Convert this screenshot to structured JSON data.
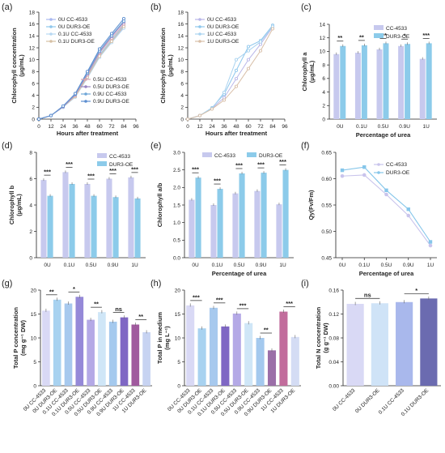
{
  "colors": {
    "cc": "#c7c9ee",
    "oe": "#8ccbea",
    "axis": "#222222"
  },
  "panels": {
    "a": {
      "label": "(a)",
      "xlabel": "Hours after treatment",
      "ylabel": "Chlorophyll concentration",
      "yunit": "(μg/mL)"
    },
    "b": {
      "label": "(b)",
      "xlabel": "Hours after treatment",
      "ylabel": "Chlorophyll concentration",
      "yunit": "(μg/mL)"
    },
    "c": {
      "label": "(c)",
      "xlabel": "Percentage of urea",
      "ylabel": "Chlorophyll a",
      "yunit": "(μg/mL)"
    },
    "d": {
      "label": "(d)",
      "xlabel": "",
      "ylabel": "Chlorophyll b",
      "yunit": "(μg/mL)"
    },
    "e": {
      "label": "(e)",
      "xlabel": "Percentage of urea",
      "ylabel": "Chlorophyll a/b",
      "yunit": ""
    },
    "f": {
      "label": "(f)",
      "xlabel": "Percentage of urea",
      "ylabel": "Qy(Fv/Fm)",
      "yunit": ""
    },
    "g": {
      "label": "(g)",
      "xlabel": "",
      "ylabel": "Total P concentration",
      "yunit": "(mg g⁻¹ DW)"
    },
    "h": {
      "label": "(h)",
      "xlabel": "",
      "ylabel": "Total P in medium",
      "yunit": "(mg L⁻¹)"
    },
    "i": {
      "label": "(i)",
      "xlabel": "",
      "ylabel": "Total N concentration",
      "yunit": "(g g⁻¹ DW)"
    }
  },
  "chart_data": [
    {
      "id": "a",
      "type": "line",
      "x": [
        0,
        12,
        24,
        36,
        48,
        60,
        72,
        84
      ],
      "xlim": [
        0,
        96
      ],
      "ylim": [
        0,
        18
      ],
      "yticks": [
        0,
        2,
        4,
        6,
        8,
        10,
        12,
        14,
        16,
        18
      ],
      "xticks": [
        0,
        12,
        24,
        36,
        48,
        60,
        72,
        84,
        96
      ],
      "series": [
        {
          "name": "0U CC-4533",
          "color": "#a8b8f0",
          "values": [
            0,
            0.6,
            2.0,
            3.8,
            7.0,
            10.5,
            13.0,
            15.4
          ]
        },
        {
          "name": "0U DUR3-OE",
          "color": "#8fc7ec",
          "values": [
            0,
            0.6,
            2.0,
            3.9,
            7.2,
            10.8,
            13.3,
            15.8
          ]
        },
        {
          "name": "0.1U CC-4533",
          "color": "#b7d8f2",
          "values": [
            0,
            0.6,
            2.0,
            3.7,
            6.9,
            10.4,
            12.9,
            15.3
          ]
        },
        {
          "name": "0.1U DUR3-OE",
          "color": "#d6c0a4",
          "values": [
            0,
            0.6,
            2.1,
            3.8,
            7.1,
            10.6,
            13.1,
            15.6
          ]
        },
        {
          "name": "0.5U CC-4533",
          "color": "#d9a8b2",
          "values": [
            0,
            0.6,
            2.1,
            4.0,
            7.4,
            11.1,
            13.6,
            16.0
          ]
        },
        {
          "name": "0.5U DUR3-OE",
          "color": "#9a86c4",
          "values": [
            0,
            0.6,
            2.1,
            4.1,
            7.6,
            11.3,
            13.9,
            16.3
          ]
        },
        {
          "name": "0.9U CC-4533",
          "color": "#6fa6d8",
          "values": [
            0,
            0.6,
            2.2,
            4.2,
            7.8,
            11.5,
            14.1,
            16.5
          ]
        },
        {
          "name": "0.9U DUR3-OE",
          "color": "#5d8fd0",
          "values": [
            0,
            0.6,
            2.2,
            4.3,
            8.0,
            11.8,
            14.4,
            16.9
          ]
        }
      ]
    },
    {
      "id": "b",
      "type": "line",
      "x": [
        0,
        12,
        24,
        36,
        48,
        60,
        72,
        84
      ],
      "xlim": [
        0,
        96
      ],
      "ylim": [
        0,
        18
      ],
      "yticks": [
        0,
        2,
        4,
        6,
        8,
        10,
        12,
        14,
        16,
        18
      ],
      "xticks": [
        0,
        12,
        24,
        36,
        48,
        60,
        72,
        84,
        96
      ],
      "series": [
        {
          "name": "0U CC-4533",
          "color": "#b9b6e8",
          "values": [
            0,
            0.6,
            1.8,
            3.6,
            6.8,
            10.0,
            12.6,
            15.5
          ]
        },
        {
          "name": "0U DUR3-OE",
          "color": "#8fc7ec",
          "values": [
            0,
            0.6,
            1.9,
            4.2,
            8.2,
            12.2,
            13.2,
            15.8
          ]
        },
        {
          "name": "1U CC-4533",
          "color": "#a9d3f0",
          "values": [
            0,
            0.6,
            1.8,
            4.5,
            10.0,
            11.5,
            13.0,
            15.6
          ]
        },
        {
          "name": "1U DUR3-OE",
          "color": "#d8bfa8",
          "values": [
            0,
            0.6,
            1.7,
            3.2,
            5.5,
            8.5,
            11.5,
            15.2
          ]
        }
      ]
    },
    {
      "id": "c",
      "type": "bar",
      "categories": [
        "0U",
        "0.1U",
        "0.5U",
        "0.9U",
        "1U"
      ],
      "ylim": [
        0,
        14
      ],
      "yticks": [
        0,
        2,
        4,
        6,
        8,
        10,
        12,
        14
      ],
      "series": [
        {
          "name": "CC-4533",
          "values": [
            9.6,
            9.8,
            10.3,
            10.8,
            8.9
          ]
        },
        {
          "name": "DUR3-OE",
          "values": [
            10.8,
            10.9,
            11.2,
            11.1,
            11.2
          ]
        }
      ],
      "significance": [
        "**",
        "**",
        "***",
        "*",
        "***"
      ]
    },
    {
      "id": "d",
      "type": "bar",
      "categories": [
        "0U",
        "0.1U",
        "0.5U",
        "0.9U",
        "1U"
      ],
      "ylim": [
        0,
        8
      ],
      "yticks": [
        0,
        2,
        4,
        6,
        8
      ],
      "series": [
        {
          "name": "CC-4533",
          "values": [
            5.9,
            6.5,
            5.6,
            6.0,
            6.1
          ]
        },
        {
          "name": "DUR3-OE",
          "values": [
            4.7,
            5.6,
            4.7,
            4.6,
            4.5
          ]
        }
      ],
      "significance": [
        "***",
        "***",
        "***",
        "***",
        "***"
      ]
    },
    {
      "id": "e",
      "type": "bar",
      "categories": [
        "0U",
        "0.1U",
        "0.5U",
        "0.9U",
        "1U"
      ],
      "ylim": [
        0,
        3.0
      ],
      "yticks": [
        0,
        0.5,
        1.0,
        1.5,
        2.0,
        2.5,
        3.0
      ],
      "series": [
        {
          "name": "CC-4533",
          "values": [
            1.65,
            1.5,
            1.83,
            1.9,
            1.52
          ]
        },
        {
          "name": "DUR3-OE",
          "values": [
            2.28,
            1.96,
            2.4,
            2.42,
            2.5
          ]
        }
      ],
      "significance": [
        "***",
        "***",
        "***",
        "***",
        "***"
      ]
    },
    {
      "id": "f",
      "type": "line",
      "categories": [
        "0U",
        "0.1U",
        "0.5U",
        "0.9U",
        "1U"
      ],
      "ylim": [
        0.45,
        0.65
      ],
      "yticks": [
        0.45,
        0.5,
        0.55,
        0.6,
        0.65
      ],
      "series": [
        {
          "name": "CC-4533",
          "color": "#c9c4ec",
          "values": [
            0.605,
            0.607,
            0.57,
            0.53,
            0.473
          ]
        },
        {
          "name": "DUR3-OE",
          "color": "#86c6ea",
          "values": [
            0.616,
            0.622,
            0.578,
            0.542,
            0.48
          ]
        }
      ]
    },
    {
      "id": "g",
      "type": "bar",
      "categories": [
        "0U CC-4533",
        "0U DUR3-OE",
        "0.1U CC-4533",
        "0.1U DUR3-OE",
        "0.5U CC-4533",
        "0.5U DUR3-OE",
        "0.9U CC-4533",
        "0.9U DUR3-OE",
        "1U CC-4533",
        "1U DUR3-OE"
      ],
      "ylim": [
        0,
        20
      ],
      "yticks": [
        0,
        5,
        10,
        15,
        20
      ],
      "values": [
        15.7,
        18.0,
        17.2,
        18.6,
        13.8,
        15.4,
        13.4,
        14.3,
        12.8,
        11.2
      ],
      "colors": [
        "#d9d9f5",
        "#a8d2f0",
        "#a7c9ee",
        "#9589d8",
        "#b4a9e6",
        "#cfe6f7",
        "#a4c9ee",
        "#7f67c4",
        "#a05a9e",
        "#c7d3f2"
      ],
      "significance": [
        "**",
        "*",
        "**",
        "ns",
        "**"
      ]
    },
    {
      "id": "h",
      "type": "bar",
      "categories": [
        "0U CC-4533",
        "0U DUR3-OE",
        "0.1U CC-4533",
        "0.1U DUR3-OE",
        "0.5U CC-4533",
        "0.5U DUR3-OE",
        "0.9U CC-4533",
        "0.9U DUR3-OE",
        "1U CC-4533",
        "1U DUR3-OE"
      ],
      "ylim": [
        0,
        20
      ],
      "yticks": [
        0,
        5,
        10,
        15,
        20
      ],
      "values": [
        16.8,
        12.0,
        16.3,
        12.4,
        15.1,
        13.1,
        10.0,
        7.4,
        15.5,
        10.2
      ],
      "colors": [
        "#d9d9f5",
        "#a8d2f0",
        "#a7c9ee",
        "#7f67c4",
        "#b4a9e6",
        "#cfe6f7",
        "#a4c9ee",
        "#9b6fa8",
        "#c26d9c",
        "#d4dcf4"
      ],
      "significance": [
        "***",
        "***",
        "***",
        "**",
        "***"
      ]
    },
    {
      "id": "i",
      "type": "bar",
      "categories": [
        "0U CC-4533",
        "0U DUR3-OE",
        "0.1U CC-4533",
        "0.1U DUR3-OE"
      ],
      "ylim": [
        0,
        0.16
      ],
      "yticks": [
        0.0,
        0.04,
        0.08,
        0.12,
        0.16
      ],
      "values": [
        0.137,
        0.138,
        0.14,
        0.146
      ],
      "colors": [
        "#d9d9f5",
        "#cfe3f7",
        "#a9b8ec",
        "#6b6bb0"
      ],
      "significance": [
        "ns",
        "*"
      ]
    }
  ]
}
